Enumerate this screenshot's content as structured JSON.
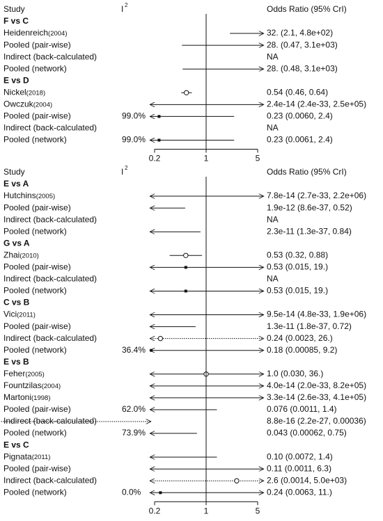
{
  "panels": [
    {
      "header": {
        "study": "Study",
        "i2": "I",
        "i2_sup": "2",
        "or": "Odds Ratio (95% CrI)"
      },
      "xticks": [
        0.2,
        1,
        5
      ],
      "groups": [
        {
          "title": "F vs C",
          "rows": [
            {
              "label": "Heidenreich",
              "year": "(2004)",
              "kind": "study",
              "or": "32. (2.1, 4.8e+02)"
            },
            {
              "label": "Pooled (pair-wise)",
              "kind": "pooled",
              "or": "28. (0.47, 3.1e+03)"
            },
            {
              "label": "Indirect (back-calculated)",
              "kind": "indirect",
              "or": "NA"
            },
            {
              "label": "Pooled (network)",
              "kind": "pooled",
              "or": "28. (0.48, 3.1e+03)"
            }
          ]
        },
        {
          "title": "E vs D",
          "rows": [
            {
              "label": "Nickel",
              "year": "(2018)",
              "kind": "study",
              "or": "0.54 (0.46, 0.64)"
            },
            {
              "label": "Owczuk",
              "year": "(2004)",
              "kind": "study",
              "or": "2.4e-14 (2.4e-33, 2.5e+05)"
            },
            {
              "label": "Pooled (pair-wise)",
              "kind": "pooled",
              "i2": "99.0%",
              "or": "0.23 (0.0060, 2.4)"
            },
            {
              "label": "Indirect (back-calculated)",
              "kind": "indirect",
              "or": "NA"
            },
            {
              "label": "Pooled (network)",
              "kind": "pooled",
              "i2": "99.0%",
              "or": "0.23 (0.0061, 2.4)"
            }
          ]
        }
      ]
    },
    {
      "header": {
        "study": "Study",
        "i2": "I",
        "i2_sup": "2",
        "or": "Odds Ratio (95% CrI)"
      },
      "xticks": [
        0.2,
        1,
        5
      ],
      "groups": [
        {
          "title": "E vs A",
          "rows": [
            {
              "label": "Hutchins",
              "year": "(2005)",
              "kind": "study",
              "or": "7.8e-14 (2.7e-33, 2.2e+06)"
            },
            {
              "label": "Pooled (pair-wise)",
              "kind": "pooled",
              "or": "1.9e-12 (8.6e-37, 0.52)"
            },
            {
              "label": "Indirect (back-calculated)",
              "kind": "indirect",
              "or": "NA"
            },
            {
              "label": "Pooled (network)",
              "kind": "pooled",
              "or": "2.3e-11 (1.3e-37, 0.84)"
            }
          ]
        },
        {
          "title": "G vs A",
          "rows": [
            {
              "label": "Zhai",
              "year": "(2010)",
              "kind": "study",
              "or": "0.53 (0.32, 0.88)"
            },
            {
              "label": "Pooled (pair-wise)",
              "kind": "pooled",
              "or": "0.53 (0.015,  19.)"
            },
            {
              "label": "Indirect (back-calculated)",
              "kind": "indirect",
              "or": "NA"
            },
            {
              "label": "Pooled (network)",
              "kind": "pooled",
              "or": "0.53 (0.015, 19.)"
            }
          ]
        },
        {
          "title": "C vs B",
          "rows": [
            {
              "label": "Vici",
              "year": "(2011)",
              "kind": "study",
              "or": "9.5e-14 (4.8e-33, 1.9e+06)"
            },
            {
              "label": "Pooled (pair-wise)",
              "kind": "pooled",
              "or": "1.3e-11 (1.8e-37, 0.72)"
            },
            {
              "label": "Indirect (back-calculated)",
              "kind": "indirect",
              "or": "0.24 (0.0023, 26.)"
            },
            {
              "label": "Pooled (network)",
              "kind": "pooled",
              "i2": "36.4%",
              "or": "0.18 (0.00085, 9.2)"
            }
          ]
        },
        {
          "title": "E vs B",
          "rows": [
            {
              "label": "Feher",
              "year": "(2005)",
              "kind": "study",
              "or": "1.0 (0.030, 36.)"
            },
            {
              "label": "Fountzilas",
              "year": "(2004)",
              "kind": "study",
              "or": "4.0e-14 (2.0e-33, 8.2e+05)"
            },
            {
              "label": "Martoni",
              "year": "(1998)",
              "kind": "study",
              "or": "3.3e-14 (2.6e-33, 4.1e+05)"
            },
            {
              "label": "Pooled (pair-wise)",
              "kind": "pooled",
              "i2": "62.0%",
              "or": "0.076 (0.0011, 1.4)"
            },
            {
              "label": "Indirect (back-calculated)",
              "kind": "indirect",
              "or": "8.8e-16 (2.2e-27, 0.00036)"
            },
            {
              "label": "Pooled (network)",
              "kind": "pooled",
              "i2": "73.9%",
              "or": "0.043 (0.00062, 0.75)"
            }
          ]
        },
        {
          "title": "E vs C",
          "rows": [
            {
              "label": "Pignata",
              "year": "(2011)",
              "kind": "study",
              "or": "0.10 (0.0072, 1.4)"
            },
            {
              "label": "Pooled (pair-wise)",
              "kind": "pooled",
              "or": "0.11 (0.0011, 6.3)"
            },
            {
              "label": "Indirect (back-calculated)",
              "kind": "indirect",
              "or": "2.6 (0.0014, 5.0e+03)"
            },
            {
              "label": "Pooled (network)",
              "kind": "pooled",
              "i2": "0.0%",
              "or": "0.24 (0.0063, 11.)"
            }
          ]
        }
      ]
    }
  ]
}
